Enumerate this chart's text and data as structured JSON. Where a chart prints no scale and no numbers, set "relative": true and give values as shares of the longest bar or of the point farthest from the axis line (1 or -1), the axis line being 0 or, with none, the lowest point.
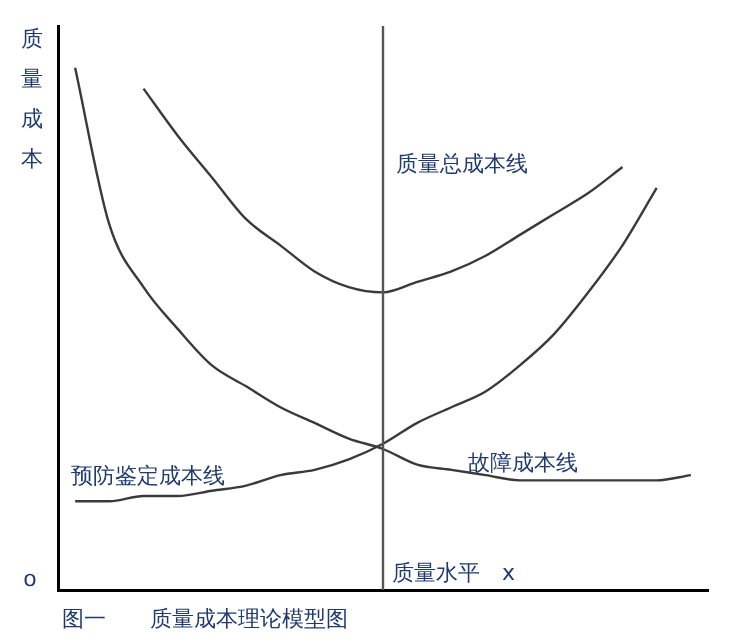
{
  "chart_data": {
    "type": "line",
    "relative": true,
    "ylabel": "质量成本",
    "xlabel": "质量水平　x",
    "categories": [
      null,
      null,
      null,
      null,
      null,
      null,
      null,
      null,
      null,
      null,
      null,
      null,
      null,
      null,
      null,
      null,
      null,
      null,
      null
    ],
    "series": [
      {
        "name": "质量总成本线",
        "color": "#3a3a3a",
        "values": [
          null,
          null,
          0.96,
          0.87,
          0.79,
          0.71,
          0.66,
          0.61,
          0.58,
          0.57,
          0.59,
          0.61,
          0.64,
          0.68,
          0.72,
          0.76,
          0.81,
          null,
          null
        ]
      },
      {
        "name": "故障成本线",
        "color": "#3a3a3a",
        "values": [
          1,
          0.7,
          0.58,
          0.5,
          0.43,
          0.39,
          0.35,
          0.32,
          0.29,
          0.27,
          0.24,
          0.23,
          0.22,
          0.21,
          0.21,
          0.21,
          0.21,
          0.21,
          0.22
        ]
      },
      {
        "name": "预防鉴定成本线",
        "color": "#3a3a3a",
        "values": [
          0.17,
          0.17,
          0.18,
          0.18,
          0.19,
          0.2,
          0.22,
          0.23,
          0.25,
          0.28,
          0.32,
          0.35,
          0.38,
          0.43,
          0.49,
          0.57,
          0.66,
          0.77,
          null
        ]
      }
    ],
    "annotations": [
      "o",
      "图一　　质量成本理论模型图"
    ],
    "legend": false,
    "grid": false,
    "marker": "none",
    "line_style": "solid"
  }
}
